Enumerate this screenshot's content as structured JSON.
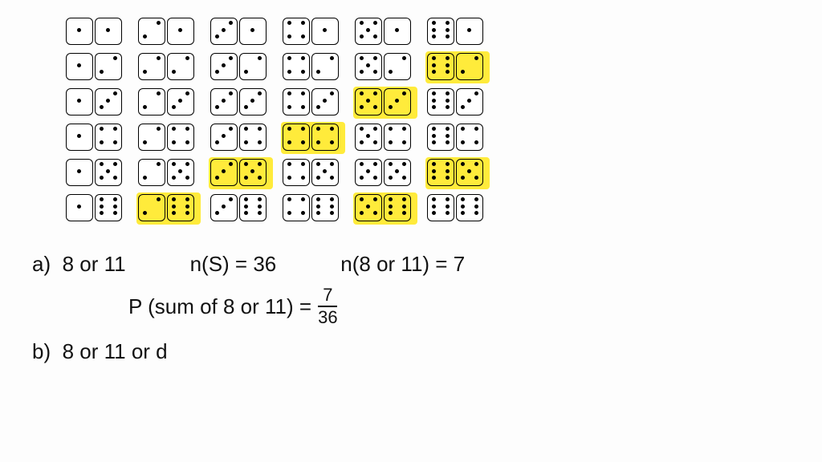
{
  "dice": {
    "highlight_sums": [
      8,
      11
    ],
    "highlight_color": "#ffeb3b",
    "die_border": "#000000",
    "pip_color": "#000000",
    "pip_layouts": {
      "1": [
        4
      ],
      "2": [
        2,
        6
      ],
      "3": [
        2,
        4,
        6
      ],
      "4": [
        0,
        2,
        6,
        8
      ],
      "5": [
        0,
        2,
        4,
        6,
        8
      ],
      "6": [
        0,
        2,
        3,
        5,
        6,
        8
      ]
    }
  },
  "text": {
    "a_label": "a)",
    "a_desc": "8 or 11",
    "ns": "n(S) = 36",
    "n_event": "n(8 or 11) = 7",
    "p_label": "P (sum of 8 or 11) =",
    "frac_num": "7",
    "frac_den": "36",
    "b_label": "b)",
    "b_desc": "8 or 11  or  d"
  }
}
